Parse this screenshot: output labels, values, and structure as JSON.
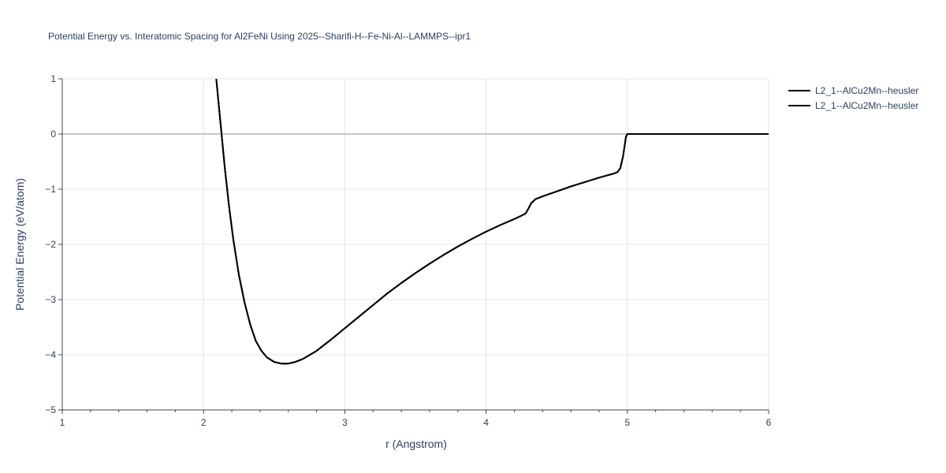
{
  "chart_data": {
    "type": "line",
    "title": "Potential Energy vs. Interatomic Spacing for Al2FeNi Using 2025--Sharifi-H--Fe-Ni-Al--LAMMPS--ipr1",
    "xlabel": "r (Angstrom)",
    "ylabel": "Potential Energy (eV/atom)",
    "xlim": [
      1,
      6
    ],
    "ylim": [
      -5,
      1
    ],
    "xticks": [
      "1",
      "2",
      "3",
      "4",
      "5",
      "6"
    ],
    "yticks": [
      "1",
      "0",
      "−1",
      "−2",
      "−3",
      "−4",
      "−5"
    ],
    "grid": true,
    "legend_position": "top-right",
    "series": [
      {
        "name": "L2_1--AlCu2Mn--heusler",
        "color": "#000000",
        "x": [
          2.09,
          2.12,
          2.15,
          2.18,
          2.21,
          2.25,
          2.29,
          2.33,
          2.37,
          2.41,
          2.45,
          2.5,
          2.55,
          2.6,
          2.65,
          2.7,
          2.8,
          2.9,
          3.0,
          3.1,
          3.2,
          3.3,
          3.4,
          3.5,
          3.6,
          3.7,
          3.8,
          3.9,
          4.0,
          4.1,
          4.2,
          4.25,
          4.28,
          4.3,
          4.32,
          4.35,
          4.4,
          4.5,
          4.6,
          4.7,
          4.8,
          4.9,
          4.93,
          4.95,
          4.97,
          4.99,
          5.0,
          5.2,
          5.4,
          5.6,
          5.8,
          6.0
        ],
        "y": [
          1.0,
          0.2,
          -0.6,
          -1.3,
          -1.9,
          -2.55,
          -3.05,
          -3.45,
          -3.75,
          -3.93,
          -4.05,
          -4.13,
          -4.16,
          -4.16,
          -4.13,
          -4.08,
          -3.93,
          -3.73,
          -3.52,
          -3.31,
          -3.1,
          -2.89,
          -2.7,
          -2.52,
          -2.35,
          -2.19,
          -2.04,
          -1.9,
          -1.77,
          -1.65,
          -1.54,
          -1.48,
          -1.44,
          -1.35,
          -1.25,
          -1.18,
          -1.13,
          -1.04,
          -0.95,
          -0.87,
          -0.79,
          -0.72,
          -0.69,
          -0.62,
          -0.4,
          -0.05,
          0.0,
          0.0,
          0.0,
          0.0,
          0.0,
          0.0
        ]
      },
      {
        "name": "L2_1--AlCu2Mn--heusler",
        "color": "#000000",
        "x": [
          2.09,
          2.12,
          2.15,
          2.18,
          2.21,
          2.25,
          2.29,
          2.33,
          2.37,
          2.41,
          2.45,
          2.5,
          2.55,
          2.6,
          2.65,
          2.7,
          2.8,
          2.9,
          3.0,
          3.1,
          3.2,
          3.3,
          3.4,
          3.5,
          3.6,
          3.7,
          3.8,
          3.9,
          4.0,
          4.1,
          4.2,
          4.25,
          4.28,
          4.3,
          4.32,
          4.35,
          4.4,
          4.5,
          4.6,
          4.7,
          4.8,
          4.9,
          4.93,
          4.95,
          4.97,
          4.99,
          5.0,
          5.2,
          5.4,
          5.6,
          5.8,
          6.0
        ],
        "y": [
          1.0,
          0.2,
          -0.6,
          -1.3,
          -1.9,
          -2.55,
          -3.05,
          -3.45,
          -3.75,
          -3.93,
          -4.05,
          -4.13,
          -4.16,
          -4.16,
          -4.13,
          -4.08,
          -3.93,
          -3.73,
          -3.52,
          -3.31,
          -3.1,
          -2.89,
          -2.7,
          -2.52,
          -2.35,
          -2.19,
          -2.04,
          -1.9,
          -1.77,
          -1.65,
          -1.54,
          -1.48,
          -1.44,
          -1.35,
          -1.25,
          -1.18,
          -1.13,
          -1.04,
          -0.95,
          -0.87,
          -0.79,
          -0.72,
          -0.69,
          -0.62,
          -0.4,
          -0.05,
          0.0,
          0.0,
          0.0,
          0.0,
          0.0,
          0.0
        ]
      }
    ]
  }
}
